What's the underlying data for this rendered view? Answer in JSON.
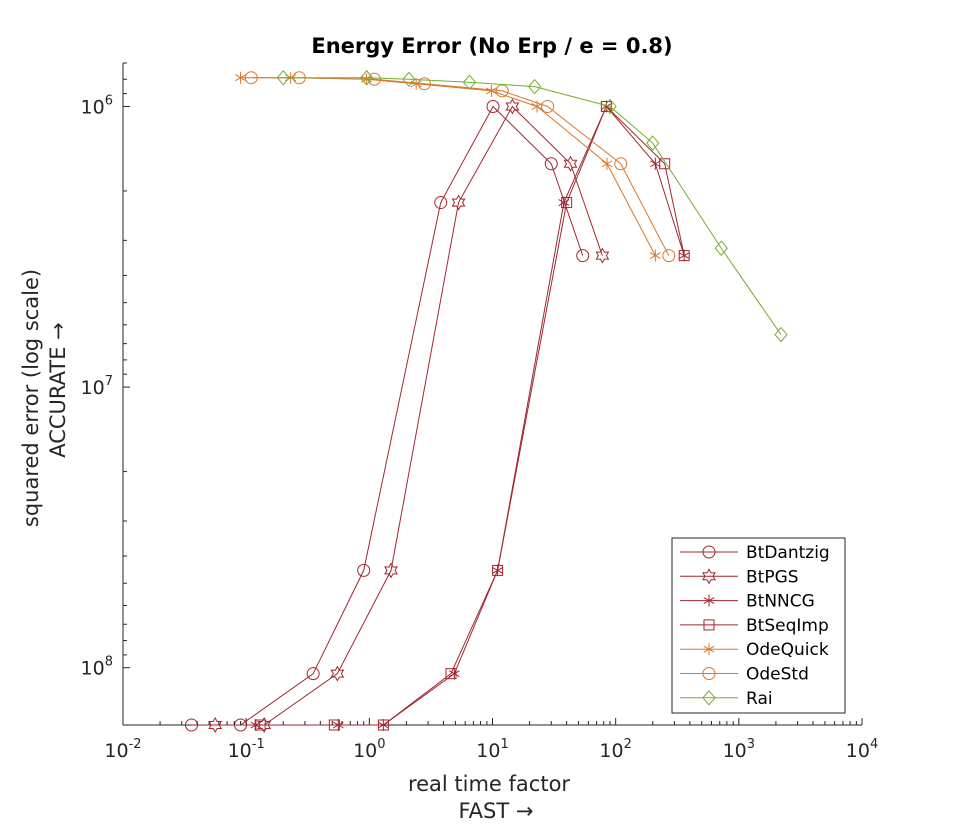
{
  "chart_data": {
    "type": "scatter",
    "title": "Energy Error (No Erp / e = 0.8)",
    "xlabel": [
      "real time factor",
      "FAST →"
    ],
    "ylabel": [
      "squared error (log scale)",
      "ACCURATE →"
    ],
    "xscale": "log",
    "yscale": "log",
    "y_reversed": true,
    "xlim": [
      0.01,
      10000
    ],
    "ylim": [
      700000,
      160000000
    ],
    "x_ticks": [
      {
        "value": 0.01,
        "base": "10",
        "exp": "-2"
      },
      {
        "value": 0.1,
        "base": "10",
        "exp": "-1"
      },
      {
        "value": 1,
        "base": "10",
        "exp": "0"
      },
      {
        "value": 10,
        "base": "10",
        "exp": "1"
      },
      {
        "value": 100,
        "base": "10",
        "exp": "2"
      },
      {
        "value": 1000,
        "base": "10",
        "exp": "3"
      },
      {
        "value": 10000,
        "base": "10",
        "exp": "4"
      }
    ],
    "y_ticks": [
      {
        "value": 1000000,
        "base": "10",
        "exp": "6"
      },
      {
        "value": 10000000,
        "base": "10",
        "exp": "7"
      },
      {
        "value": 100000000,
        "base": "10",
        "exp": "8"
      }
    ],
    "grid": false,
    "legend_position": "bottom-right",
    "series": [
      {
        "name": "BtDantzig",
        "marker": "circle",
        "color": "#a2262e",
        "x": [
          0.036,
          0.09,
          0.35,
          0.9,
          3.8,
          10.1,
          30,
          54
        ],
        "y": [
          160000000,
          160000000,
          105000000,
          45000000,
          2200000,
          1000000,
          1600000,
          3400000
        ]
      },
      {
        "name": "BtPGS",
        "marker": "star6",
        "color": "#a2262e",
        "x": [
          0.056,
          0.14,
          0.55,
          1.5,
          5.3,
          14.5,
          43,
          78
        ],
        "y": [
          160000000,
          160000000,
          105000000,
          45000000,
          2200000,
          1000000,
          1600000,
          3400000
        ]
      },
      {
        "name": "BtNNCG",
        "marker": "asterisk",
        "color": "#a2262e",
        "x": [
          0.12,
          0.56,
          1.3,
          4.9,
          11,
          38,
          84,
          210,
          360
        ],
        "y": [
          160000000,
          160000000,
          160000000,
          105000000,
          45000000,
          2200000,
          1000000,
          1600000,
          3400000
        ]
      },
      {
        "name": "BtSeqImp",
        "marker": "square",
        "color": "#a2262e",
        "x": [
          0.13,
          0.52,
          1.3,
          4.6,
          11,
          40,
          84,
          250,
          360
        ],
        "y": [
          160000000,
          160000000,
          160000000,
          105000000,
          45000000,
          2200000,
          1000000,
          1600000,
          3400000
        ]
      },
      {
        "name": "OdeQuick",
        "marker": "asterisk",
        "color": "#d9782d",
        "x": [
          0.09,
          0.23,
          0.95,
          2.4,
          9.8,
          23,
          85,
          210
        ],
        "y": [
          790000,
          790000,
          800000,
          830000,
          880000,
          1000000,
          1600000,
          3400000
        ]
      },
      {
        "name": "OdeStd",
        "marker": "circle",
        "color": "#d9782d",
        "x": [
          0.11,
          0.27,
          1.1,
          2.8,
          12,
          28,
          110,
          270
        ],
        "y": [
          790000,
          790000,
          800000,
          830000,
          880000,
          1000000,
          1600000,
          3400000
        ]
      },
      {
        "name": "Rai",
        "marker": "diamond",
        "color": "#77ac30",
        "x": [
          0.2,
          0.95,
          2.1,
          6.5,
          22,
          90,
          200,
          720,
          2200
        ],
        "y": [
          790000,
          790000,
          800000,
          820000,
          850000,
          1000000,
          1350000,
          3200000,
          6500000
        ]
      }
    ]
  }
}
